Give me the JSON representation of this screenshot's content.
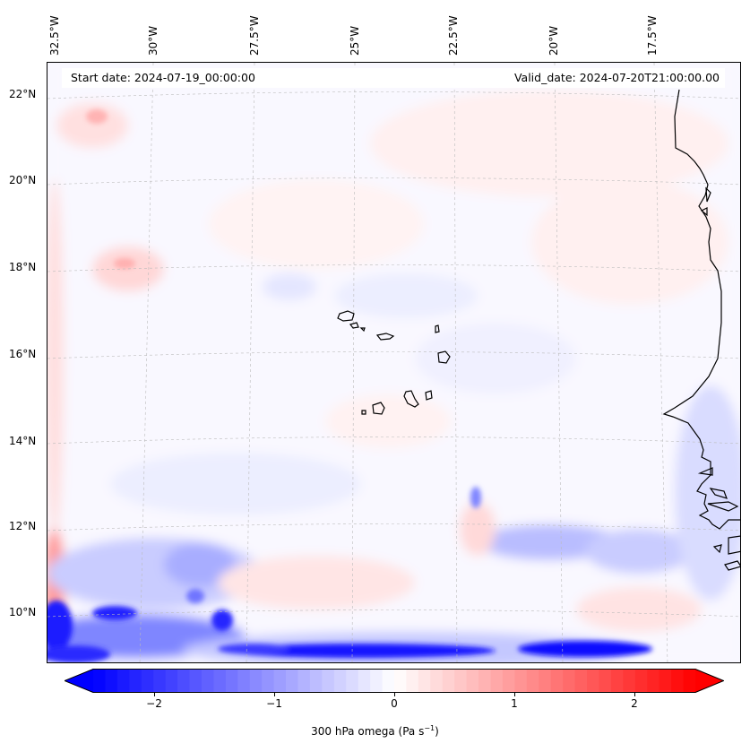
{
  "map": {
    "start_date": "Start date: 2024-07-19_00:00:00",
    "valid_date": "Valid_date: 2024-07-20T21:00:00.00",
    "lon_labels": [
      "32.5°W",
      "30°W",
      "27.5°W",
      "25°W",
      "22.5°W",
      "20°W",
      "17.5°W"
    ],
    "lat_labels": [
      "22°N",
      "20°N",
      "18°N",
      "16°N",
      "14°N",
      "12°N",
      "10°N"
    ],
    "extent": {
      "lon_min": -33.0,
      "lon_max": -15.9,
      "lat_min": 8.8,
      "lat_max": 22.7
    },
    "field": "300 hPa omega",
    "grid": true
  },
  "colorbar": {
    "ticks": [
      "−2",
      "−1",
      "0",
      "1",
      "2"
    ],
    "tick_values": [
      -2,
      -1,
      0,
      1,
      2
    ],
    "range": [
      -2.5,
      2.5
    ],
    "label": "300 hPa omega (Pa s",
    "label_sup": "−1",
    "label_close": ")",
    "colors": {
      "low": "#0000ff",
      "mid": "#ffffff",
      "high": "#ff0000"
    },
    "extend": "both"
  }
}
